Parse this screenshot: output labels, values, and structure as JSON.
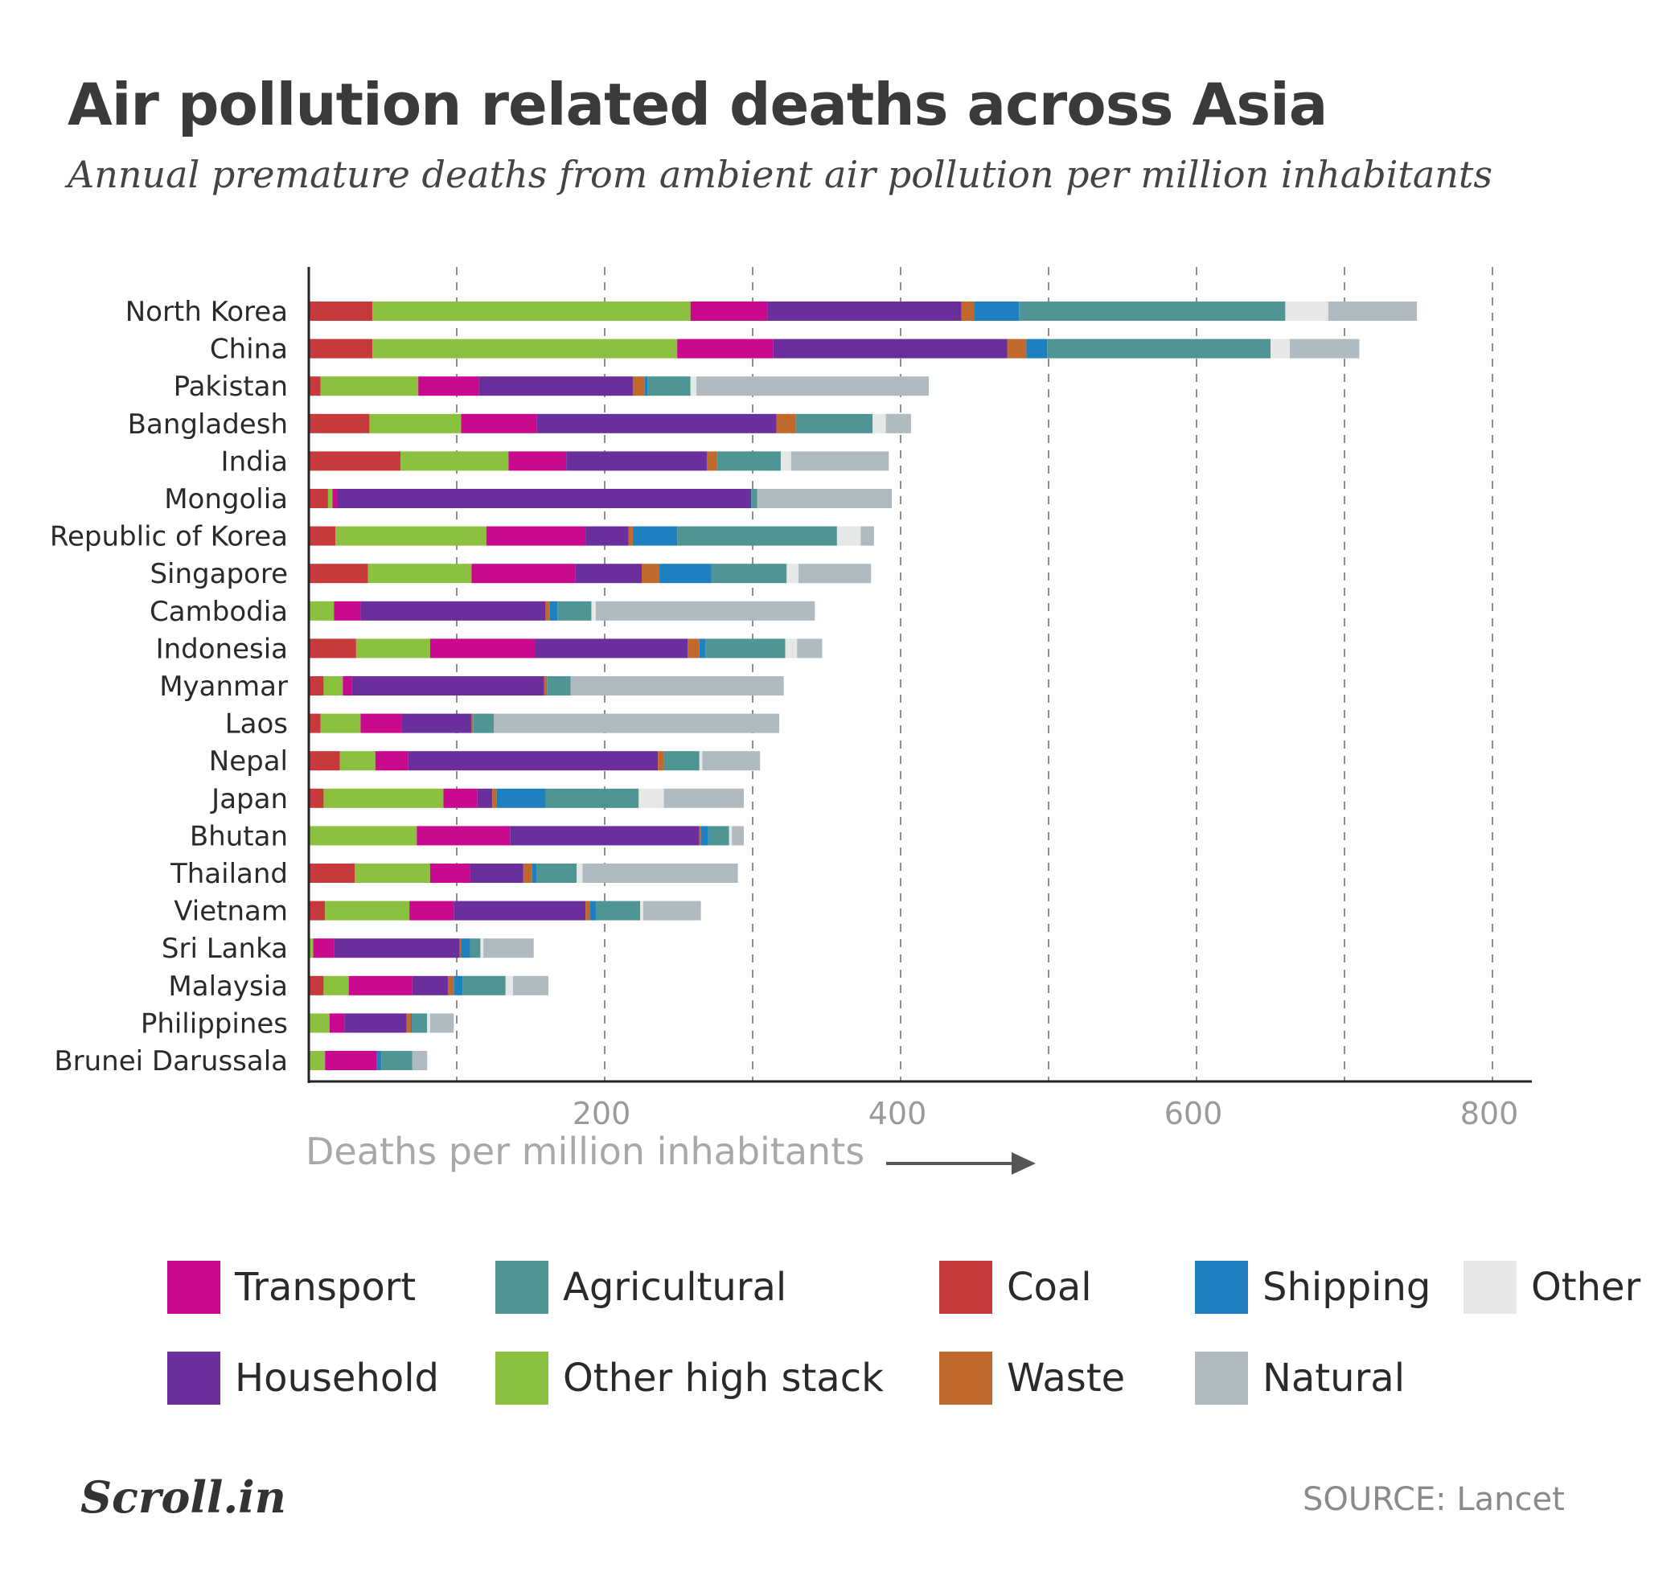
{
  "title": "Air pollution related deaths across Asia",
  "subtitle": "Annual premature deaths from ambient air pollution per million inhabitants",
  "source": "SOURCE: Lancet",
  "logo": "Scroll.in",
  "chart_data": {
    "type": "bar",
    "orientation": "horizontal",
    "stacked": true,
    "xlabel": "Deaths per million inhabitants",
    "xlim": [
      0,
      830
    ],
    "xticks": [
      200,
      400,
      600,
      800
    ],
    "grid": "vertical dashed",
    "legend_position": "bottom",
    "categories": [
      "North Korea",
      "China",
      "Pakistan",
      "Bangladesh",
      "India",
      "Mongolia",
      "Republic of Korea",
      "Singapore",
      "Cambodia",
      "Indonesia",
      "Myanmar",
      "Laos",
      "Nepal",
      "Japan",
      "Bhutan",
      "Thailand",
      "Vietnam",
      "Sri Lanka",
      "Malaysia",
      "Philippines",
      "Brunei Darussala"
    ],
    "series": [
      {
        "name": "Coal",
        "color": "#c8393c",
        "values": [
          43,
          43,
          8,
          41,
          62,
          13,
          18,
          40,
          0,
          32,
          10,
          8,
          21,
          10,
          0,
          31,
          11,
          0,
          10,
          0,
          0
        ]
      },
      {
        "name": "Other high stack",
        "color": "#8cc13f",
        "values": [
          215,
          206,
          66,
          62,
          73,
          3,
          102,
          70,
          17,
          50,
          13,
          27,
          24,
          81,
          73,
          51,
          57,
          3,
          17,
          14,
          11
        ]
      },
      {
        "name": "Transport",
        "color": "#c90a8e",
        "values": [
          52,
          65,
          41,
          51,
          39,
          3,
          67,
          70,
          18,
          71,
          6,
          28,
          22,
          23,
          63,
          27,
          30,
          14,
          43,
          10,
          35
        ]
      },
      {
        "name": "Household",
        "color": "#6a2f9c",
        "values": [
          131,
          158,
          104,
          162,
          95,
          280,
          29,
          45,
          125,
          103,
          130,
          47,
          169,
          10,
          128,
          36,
          89,
          85,
          24,
          42,
          0
        ]
      },
      {
        "name": "Waste",
        "color": "#c1692d",
        "values": [
          9,
          13,
          8,
          13,
          7,
          0,
          3,
          12,
          3,
          8,
          2,
          1,
          4,
          3,
          1,
          6,
          3,
          1,
          4,
          3,
          0
        ]
      },
      {
        "name": "Shipping",
        "color": "#1f80c0",
        "values": [
          30,
          14,
          2,
          0,
          0,
          0,
          30,
          35,
          5,
          4,
          0,
          0,
          0,
          33,
          5,
          3,
          4,
          6,
          6,
          1,
          3
        ]
      },
      {
        "name": "Agricultural",
        "color": "#4e9594",
        "values": [
          180,
          151,
          29,
          52,
          43,
          4,
          108,
          51,
          23,
          54,
          16,
          14,
          24,
          63,
          14,
          27,
          30,
          7,
          29,
          10,
          21
        ]
      },
      {
        "name": "Other",
        "color": "#e6e8e8",
        "values": [
          29,
          13,
          4,
          9,
          7,
          0,
          16,
          8,
          3,
          8,
          0,
          0,
          2,
          17,
          2,
          4,
          2,
          2,
          5,
          2,
          0
        ]
      },
      {
        "name": "Natural",
        "color": "#b0bac1",
        "values": [
          60,
          47,
          157,
          17,
          66,
          91,
          9,
          49,
          148,
          17,
          144,
          193,
          39,
          54,
          8,
          105,
          39,
          34,
          24,
          16,
          10
        ]
      }
    ]
  },
  "legend": [
    {
      "label": "Transport",
      "color": "#c90a8e"
    },
    {
      "label": "Agricultural",
      "color": "#4e9594"
    },
    {
      "label": "Coal",
      "color": "#c8393c"
    },
    {
      "label": "Shipping",
      "color": "#1f80c0"
    },
    {
      "label": "Other",
      "color": "#e6e8e8"
    },
    {
      "label": "Household",
      "color": "#6a2f9c"
    },
    {
      "label": "Other high stack",
      "color": "#8cc13f"
    },
    {
      "label": "Waste",
      "color": "#c1692d"
    },
    {
      "label": "Natural",
      "color": "#b0bac1"
    }
  ]
}
